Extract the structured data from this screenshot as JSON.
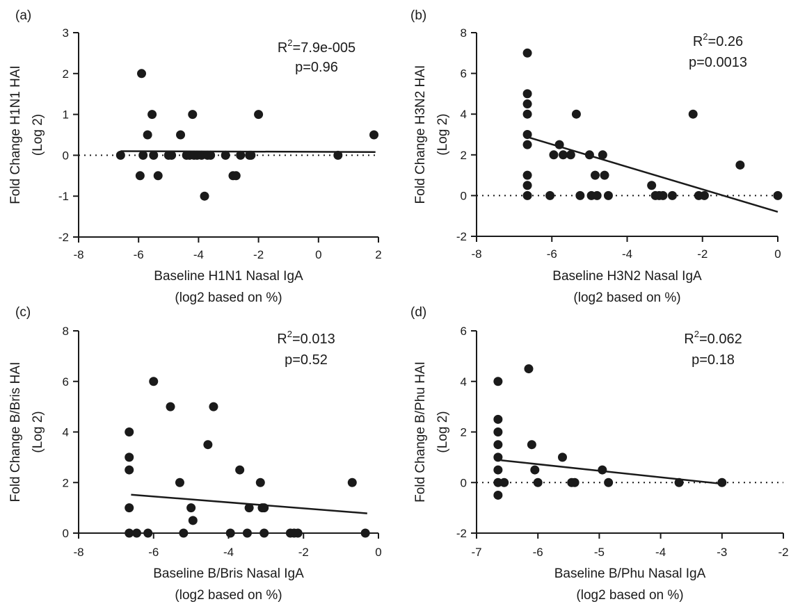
{
  "figure": {
    "title": ""
  },
  "chart_data": [
    {
      "type": "scatter",
      "panel_label": "(a)",
      "xlabel": [
        "Baseline H1N1 Nasal IgA",
        "(log2 based on %)"
      ],
      "ylabel": [
        "Fold Change H1N1 HAI",
        "(Log 2)"
      ],
      "xlim": [
        -8,
        2
      ],
      "ylim": [
        -2,
        3
      ],
      "xticks": [
        -8,
        -6,
        -4,
        -2,
        0,
        2
      ],
      "yticks": [
        -2,
        -1,
        0,
        1,
        2,
        3
      ],
      "xtick_labels": [
        "-8",
        "-6",
        "-4",
        "-2",
        "0",
        "2"
      ],
      "ytick_labels": [
        "-2",
        "-1",
        "0",
        "1",
        "2",
        "3"
      ],
      "stats": {
        "r2_prefix": "R",
        "r2_exp": "2",
        "r2_value": "=7.9e-005",
        "p": "p=0.96"
      },
      "fit_line": [
        [
          -6.6,
          0.1
        ],
        [
          1.9,
          0.08
        ]
      ],
      "reference_line_y": 0,
      "grid": false,
      "points": [
        [
          -6.6,
          0
        ],
        [
          -5.95,
          -0.5
        ],
        [
          -5.9,
          2
        ],
        [
          -5.85,
          0
        ],
        [
          -5.7,
          0.5
        ],
        [
          -5.55,
          1
        ],
        [
          -5.5,
          0
        ],
        [
          -5.35,
          -0.5
        ],
        [
          -5.0,
          0
        ],
        [
          -4.9,
          0
        ],
        [
          -4.6,
          0.5
        ],
        [
          -4.4,
          0
        ],
        [
          -4.3,
          0
        ],
        [
          -4.2,
          1
        ],
        [
          -4.15,
          0
        ],
        [
          -4.05,
          0
        ],
        [
          -3.9,
          0
        ],
        [
          -3.8,
          -1
        ],
        [
          -3.7,
          0
        ],
        [
          -3.6,
          0
        ],
        [
          -3.1,
          0
        ],
        [
          -2.85,
          -0.5
        ],
        [
          -2.75,
          -0.5
        ],
        [
          -2.6,
          0
        ],
        [
          -2.3,
          0
        ],
        [
          -2.25,
          0
        ],
        [
          -2.0,
          1
        ],
        [
          0.65,
          0
        ],
        [
          1.85,
          0.5
        ]
      ]
    },
    {
      "type": "scatter",
      "panel_label": "(b)",
      "xlabel": [
        "Baseline H3N2 Nasal IgA",
        "(log2 based on %)"
      ],
      "ylabel": [
        "Fold Change H3N2 HAI",
        "(Log 2)"
      ],
      "xlim": [
        -8,
        0
      ],
      "ylim": [
        -2,
        8
      ],
      "xticks": [
        -8,
        -6,
        -4,
        -2,
        0
      ],
      "yticks": [
        -2,
        0,
        2,
        4,
        6,
        8
      ],
      "xtick_labels": [
        "-8",
        "-6",
        "-4",
        "-2",
        "0"
      ],
      "ytick_labels": [
        "-2",
        "0",
        "2",
        "4",
        "6",
        "8"
      ],
      "stats": {
        "r2_prefix": "R",
        "r2_exp": "2",
        "r2_value": "=0.26",
        "p": "p=0.0013"
      },
      "fit_line": [
        [
          -6.6,
          2.85
        ],
        [
          0,
          -0.8
        ]
      ],
      "reference_line_y": 0,
      "grid": false,
      "points": [
        [
          -6.65,
          7
        ],
        [
          -6.65,
          5
        ],
        [
          -6.65,
          4.5
        ],
        [
          -6.65,
          4
        ],
        [
          -6.65,
          3
        ],
        [
          -6.65,
          2.5
        ],
        [
          -6.65,
          1
        ],
        [
          -6.65,
          0.5
        ],
        [
          -6.65,
          0
        ],
        [
          -6.05,
          0
        ],
        [
          -5.95,
          2
        ],
        [
          -5.8,
          2.5
        ],
        [
          -5.7,
          2
        ],
        [
          -5.5,
          2
        ],
        [
          -5.35,
          4
        ],
        [
          -5.25,
          0
        ],
        [
          -5.0,
          2
        ],
        [
          -4.95,
          0
        ],
        [
          -4.85,
          1
        ],
        [
          -4.8,
          0
        ],
        [
          -4.65,
          2
        ],
        [
          -4.6,
          1
        ],
        [
          -4.5,
          0
        ],
        [
          -3.35,
          0.5
        ],
        [
          -3.25,
          0
        ],
        [
          -3.15,
          0
        ],
        [
          -3.05,
          0
        ],
        [
          -2.8,
          0
        ],
        [
          -2.25,
          4
        ],
        [
          -2.1,
          0
        ],
        [
          -1.95,
          0
        ],
        [
          -1.0,
          1.5
        ],
        [
          0,
          0
        ]
      ]
    },
    {
      "type": "scatter",
      "panel_label": "(c)",
      "xlabel": [
        "Baseline B/Bris Nasal IgA",
        "(log2 based on %)"
      ],
      "ylabel": [
        "Fold Change B/Bris HAI",
        "(Log 2)"
      ],
      "xlim": [
        -8,
        0
      ],
      "ylim": [
        0,
        8
      ],
      "xticks": [
        -8,
        -6,
        -4,
        -2,
        0
      ],
      "yticks": [
        0,
        2,
        4,
        6,
        8
      ],
      "xtick_labels": [
        "-8",
        "-6",
        "-4",
        "-2",
        "0"
      ],
      "ytick_labels": [
        "0",
        "2",
        "4",
        "6",
        "8"
      ],
      "stats": {
        "r2_prefix": "R",
        "r2_exp": "2",
        "r2_value": "=0.013",
        "p": "p=0.52"
      },
      "fit_line": [
        [
          -6.6,
          1.52
        ],
        [
          -0.3,
          0.78
        ]
      ],
      "reference_line_y": null,
      "grid": false,
      "points": [
        [
          -6.65,
          4
        ],
        [
          -6.65,
          3
        ],
        [
          -6.65,
          2.5
        ],
        [
          -6.65,
          1
        ],
        [
          -6.65,
          0
        ],
        [
          -6.45,
          0
        ],
        [
          -6.15,
          0
        ],
        [
          -6.0,
          6
        ],
        [
          -5.55,
          5
        ],
        [
          -5.3,
          2
        ],
        [
          -5.2,
          0
        ],
        [
          -5.0,
          1
        ],
        [
          -4.95,
          0.5
        ],
        [
          -4.55,
          3.5
        ],
        [
          -4.4,
          5
        ],
        [
          -3.95,
          0
        ],
        [
          -3.7,
          2.5
        ],
        [
          -3.5,
          0
        ],
        [
          -3.45,
          1
        ],
        [
          -3.15,
          2
        ],
        [
          -3.1,
          1
        ],
        [
          -3.05,
          1
        ],
        [
          -3.05,
          0
        ],
        [
          -2.35,
          0
        ],
        [
          -2.25,
          0
        ],
        [
          -2.15,
          0
        ],
        [
          -0.7,
          2
        ],
        [
          -0.35,
          0
        ]
      ]
    },
    {
      "type": "scatter",
      "panel_label": "(d)",
      "xlabel": [
        "Baseline B/Phu Nasal IgA",
        "(log2 based on %)"
      ],
      "ylabel": [
        "Fold Change B/Phu HAI",
        "(Log 2)"
      ],
      "xlim": [
        -7,
        -2
      ],
      "ylim": [
        -2,
        6
      ],
      "xticks": [
        -7,
        -6,
        -5,
        -4,
        -3,
        -2
      ],
      "yticks": [
        -2,
        0,
        2,
        4,
        6
      ],
      "xtick_labels": [
        "-7",
        "-6",
        "-5",
        "-4",
        "-3",
        "-2"
      ],
      "ytick_labels": [
        "-2",
        "0",
        "2",
        "4",
        "6"
      ],
      "stats": {
        "r2_prefix": "R",
        "r2_exp": "2",
        "r2_value": "=0.062",
        "p": "p=0.18"
      },
      "fit_line": [
        [
          -6.6,
          0.88
        ],
        [
          -3.0,
          -0.05
        ]
      ],
      "reference_line_y": 0,
      "grid": false,
      "points": [
        [
          -6.65,
          4
        ],
        [
          -6.65,
          2.5
        ],
        [
          -6.65,
          2
        ],
        [
          -6.65,
          1.5
        ],
        [
          -6.65,
          1
        ],
        [
          -6.65,
          0.5
        ],
        [
          -6.65,
          0
        ],
        [
          -6.65,
          -0.5
        ],
        [
          -6.55,
          0
        ],
        [
          -6.15,
          4.5
        ],
        [
          -6.1,
          1.5
        ],
        [
          -6.05,
          0.5
        ],
        [
          -6.0,
          0
        ],
        [
          -5.6,
          1
        ],
        [
          -5.45,
          0
        ],
        [
          -5.4,
          0
        ],
        [
          -4.95,
          0.5
        ],
        [
          -4.85,
          0
        ],
        [
          -3.7,
          0
        ],
        [
          -3.0,
          0
        ]
      ]
    }
  ]
}
